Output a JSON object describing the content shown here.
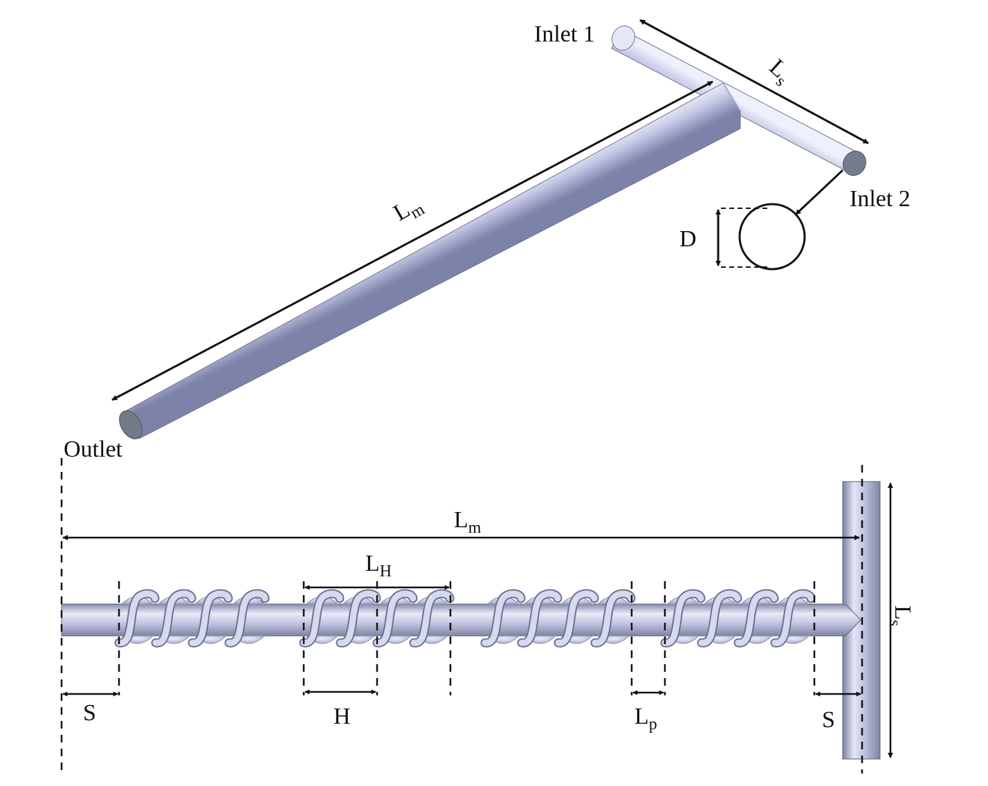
{
  "colors": {
    "pipe_light": "#eef0fb",
    "pipe_mid": "#b9bedd",
    "pipe_dark": "#7c82a8",
    "pipe_end": "#757a8c",
    "line": "#111111"
  },
  "top_view": {
    "inlet1": "Inlet 1",
    "inlet2": "Inlet 2",
    "outlet": "Outlet",
    "side_length": {
      "main": "L",
      "sub": "s"
    },
    "main_length": {
      "main": "L",
      "sub": "m"
    },
    "diameter": "D"
  },
  "side_view": {
    "main_length": {
      "main": "L",
      "sub": "m"
    },
    "helix_length": {
      "main": "L",
      "sub": "H"
    },
    "pitch": "H",
    "spacing_left": "S",
    "spacing_right": "S",
    "gap": {
      "main": "L",
      "sub": "p"
    },
    "side_length": {
      "main": "L",
      "sub": "s"
    }
  }
}
